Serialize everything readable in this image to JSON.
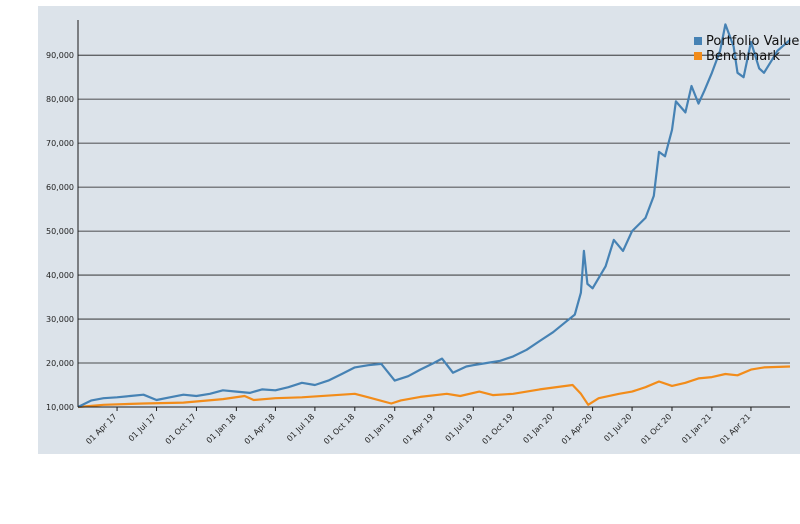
{
  "colors": {
    "panel_background": "#dce3ea",
    "portfolio": "#4682b4",
    "benchmark": "#f28c1a",
    "grid": "#1a1a1a",
    "axis": "#1a1a1a"
  },
  "chart_data": {
    "type": "line",
    "title": "",
    "xlabel": "",
    "ylabel": "",
    "x_range": [
      "2017-01-01",
      "2021-06-30"
    ],
    "ylim": [
      10000,
      98000
    ],
    "grid": {
      "horizontal": true,
      "vertical": false
    },
    "legend_position": "top-right",
    "y_ticks": [
      10000,
      20000,
      30000,
      40000,
      50000,
      60000,
      70000,
      80000,
      90000
    ],
    "y_tick_labels": [
      "10,000",
      "20,000",
      "30,000",
      "40,000",
      "50,000",
      "60,000",
      "70,000",
      "80,000",
      "90,000"
    ],
    "x_ticks": [
      "2017-04-01",
      "2017-07-01",
      "2017-10-01",
      "2018-01-01",
      "2018-04-01",
      "2018-07-01",
      "2018-10-01",
      "2019-01-01",
      "2019-04-01",
      "2019-07-01",
      "2019-10-01",
      "2020-01-01",
      "2020-04-01",
      "2020-07-01",
      "2020-10-01",
      "2021-01-01",
      "2021-04-01"
    ],
    "x_tick_labels": [
      "01 Apr 17",
      "01 Jul 17",
      "01 Oct 17",
      "01 Jan 18",
      "01 Apr 18",
      "01 Jul 18",
      "01 Oct 18",
      "01 Jan 19",
      "01 Apr 19",
      "01 Jul 19",
      "01 Oct 19",
      "01 Jan 20",
      "01 Apr 20",
      "01 Jul 20",
      "01 Oct 20",
      "01 Jan 21",
      "01 Apr 21"
    ],
    "series": [
      {
        "name": "Portfolio Value",
        "color": "#4682b4",
        "points": [
          [
            "2017-01-01",
            10000
          ],
          [
            "2017-02-01",
            11500
          ],
          [
            "2017-03-01",
            12000
          ],
          [
            "2017-04-01",
            12200
          ],
          [
            "2017-05-01",
            12500
          ],
          [
            "2017-06-01",
            12800
          ],
          [
            "2017-07-01",
            11600
          ],
          [
            "2017-08-01",
            12200
          ],
          [
            "2017-09-01",
            12800
          ],
          [
            "2017-10-01",
            12500
          ],
          [
            "2017-11-01",
            13000
          ],
          [
            "2017-12-01",
            13800
          ],
          [
            "2018-01-01",
            13500
          ],
          [
            "2018-02-01",
            13200
          ],
          [
            "2018-03-01",
            14000
          ],
          [
            "2018-04-01",
            13800
          ],
          [
            "2018-05-01",
            14500
          ],
          [
            "2018-06-01",
            15500
          ],
          [
            "2018-07-01",
            15000
          ],
          [
            "2018-08-01",
            16000
          ],
          [
            "2018-09-01",
            17500
          ],
          [
            "2018-10-01",
            19000
          ],
          [
            "2018-11-01",
            19500
          ],
          [
            "2018-12-01",
            19800
          ],
          [
            "2019-01-01",
            16000
          ],
          [
            "2019-02-01",
            17000
          ],
          [
            "2019-03-01",
            18500
          ],
          [
            "2019-04-01",
            20000
          ],
          [
            "2019-04-20",
            21000
          ],
          [
            "2019-05-15",
            17800
          ],
          [
            "2019-06-15",
            19200
          ],
          [
            "2019-07-01",
            19500
          ],
          [
            "2019-08-01",
            20000
          ],
          [
            "2019-09-01",
            20500
          ],
          [
            "2019-10-01",
            21500
          ],
          [
            "2019-11-01",
            23000
          ],
          [
            "2019-12-01",
            25000
          ],
          [
            "2020-01-01",
            27000
          ],
          [
            "2020-02-01",
            29500
          ],
          [
            "2020-02-20",
            31000
          ],
          [
            "2020-03-05",
            36000
          ],
          [
            "2020-03-12",
            45500
          ],
          [
            "2020-03-20",
            38000
          ],
          [
            "2020-04-01",
            37000
          ],
          [
            "2020-05-01",
            42000
          ],
          [
            "2020-05-20",
            48000
          ],
          [
            "2020-06-10",
            45500
          ],
          [
            "2020-07-01",
            50000
          ],
          [
            "2020-08-01",
            53000
          ],
          [
            "2020-08-20",
            58000
          ],
          [
            "2020-09-01",
            68000
          ],
          [
            "2020-09-15",
            67000
          ],
          [
            "2020-10-01",
            73000
          ],
          [
            "2020-10-10",
            79500
          ],
          [
            "2020-11-01",
            77000
          ],
          [
            "2020-11-15",
            83000
          ],
          [
            "2020-12-01",
            79000
          ],
          [
            "2020-12-15",
            82000
          ],
          [
            "2021-01-01",
            86000
          ],
          [
            "2021-01-20",
            91000
          ],
          [
            "2021-02-01",
            97000
          ],
          [
            "2021-02-20",
            92000
          ],
          [
            "2021-03-01",
            86000
          ],
          [
            "2021-03-15",
            85000
          ],
          [
            "2021-04-01",
            93000
          ],
          [
            "2021-04-20",
            87000
          ],
          [
            "2021-05-01",
            86000
          ],
          [
            "2021-05-20",
            89000
          ],
          [
            "2021-06-01",
            91000
          ],
          [
            "2021-06-30",
            93500
          ]
        ]
      },
      {
        "name": "Benchmark",
        "color": "#f28c1a",
        "points": [
          [
            "2017-01-01",
            10000
          ],
          [
            "2017-03-01",
            10500
          ],
          [
            "2017-06-01",
            10800
          ],
          [
            "2017-09-01",
            11000
          ],
          [
            "2017-12-01",
            11800
          ],
          [
            "2018-01-20",
            12500
          ],
          [
            "2018-02-10",
            11600
          ],
          [
            "2018-04-01",
            12000
          ],
          [
            "2018-06-01",
            12200
          ],
          [
            "2018-09-01",
            12800
          ],
          [
            "2018-10-01",
            13000
          ],
          [
            "2018-11-01",
            12200
          ],
          [
            "2018-12-24",
            10800
          ],
          [
            "2019-01-15",
            11500
          ],
          [
            "2019-03-01",
            12300
          ],
          [
            "2019-05-01",
            13000
          ],
          [
            "2019-06-01",
            12500
          ],
          [
            "2019-07-15",
            13500
          ],
          [
            "2019-08-15",
            12700
          ],
          [
            "2019-10-01",
            13000
          ],
          [
            "2019-12-01",
            14000
          ],
          [
            "2020-02-15",
            15000
          ],
          [
            "2020-03-05",
            13000
          ],
          [
            "2020-03-22",
            10500
          ],
          [
            "2020-04-15",
            12000
          ],
          [
            "2020-06-01",
            13000
          ],
          [
            "2020-07-01",
            13500
          ],
          [
            "2020-08-01",
            14500
          ],
          [
            "2020-09-01",
            15800
          ],
          [
            "2020-10-01",
            14800
          ],
          [
            "2020-11-01",
            15500
          ],
          [
            "2020-12-01",
            16500
          ],
          [
            "2021-01-01",
            16800
          ],
          [
            "2021-02-01",
            17500
          ],
          [
            "2021-03-01",
            17200
          ],
          [
            "2021-04-01",
            18500
          ],
          [
            "2021-05-01",
            19000
          ],
          [
            "2021-06-30",
            19200
          ]
        ]
      }
    ]
  }
}
